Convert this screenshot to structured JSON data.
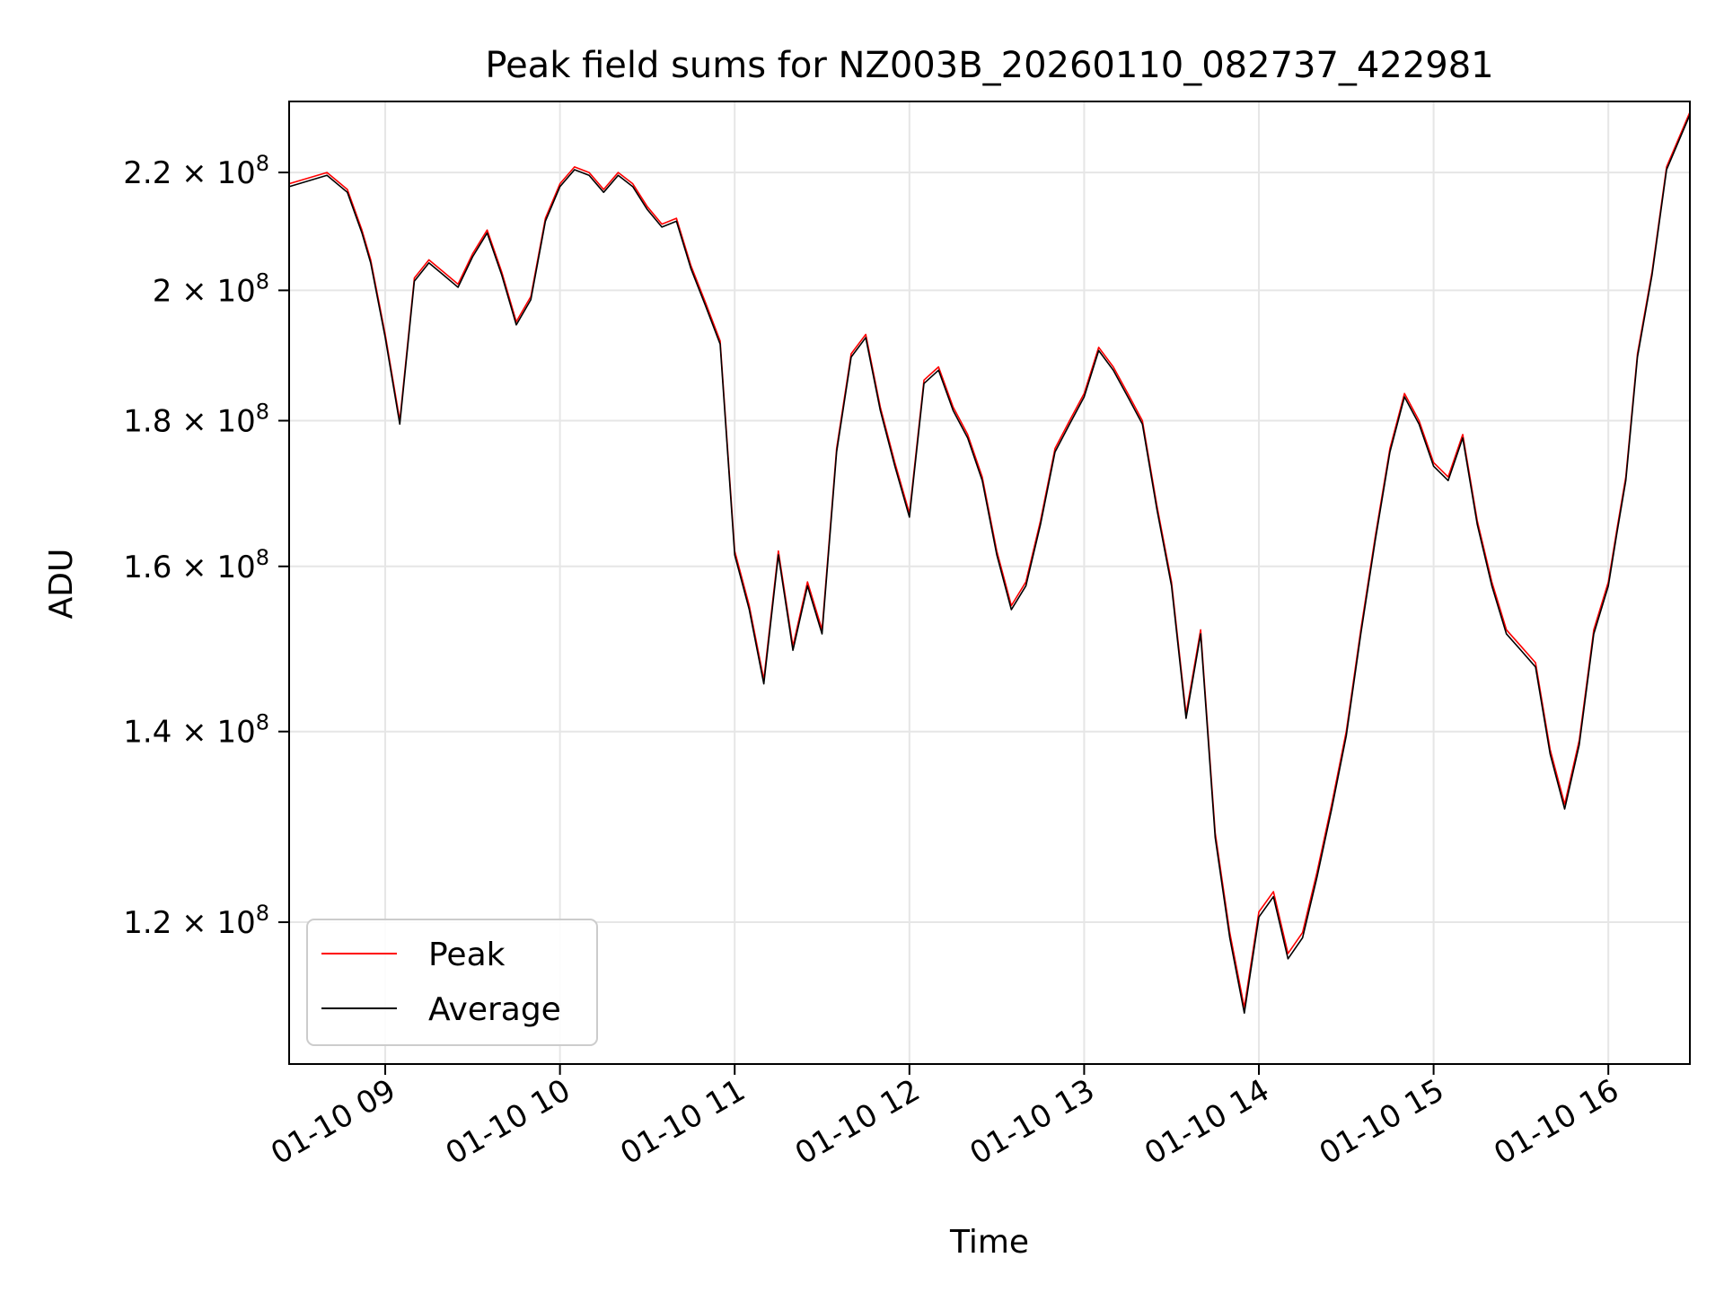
{
  "chart_data": {
    "type": "line",
    "title": "Peak field sums for NZ003B_20260110_082737_422981",
    "xlabel": "Time",
    "ylabel": "ADU",
    "y_scale": "log",
    "xlim": [
      "2026-01-10T08:27",
      "2026-01-10T16:28"
    ],
    "ylim": [
      107000000,
      233000000
    ],
    "grid": true,
    "legend": "lower left",
    "x_ticks": [
      {
        "t": "2026-01-10T09:00",
        "label": "01-10 09"
      },
      {
        "t": "2026-01-10T10:00",
        "label": "01-10 10"
      },
      {
        "t": "2026-01-10T11:00",
        "label": "01-10 11"
      },
      {
        "t": "2026-01-10T12:00",
        "label": "01-10 12"
      },
      {
        "t": "2026-01-10T13:00",
        "label": "01-10 13"
      },
      {
        "t": "2026-01-10T14:00",
        "label": "01-10 14"
      },
      {
        "t": "2026-01-10T15:00",
        "label": "01-10 15"
      },
      {
        "t": "2026-01-10T16:00",
        "label": "01-10 16"
      }
    ],
    "y_ticks": [
      {
        "value": 120000000,
        "mantissa": "1.2",
        "base": "× 10",
        "exp": "8"
      },
      {
        "value": 140000000,
        "mantissa": "1.4",
        "base": "× 10",
        "exp": "8"
      },
      {
        "value": 160000000,
        "mantissa": "1.6",
        "base": "× 10",
        "exp": "8"
      },
      {
        "value": 180000000,
        "mantissa": "1.8",
        "base": "× 10",
        "exp": "8"
      },
      {
        "value": 200000000,
        "mantissa": "2",
        "base": "× 10",
        "exp": "8"
      },
      {
        "value": 220000000,
        "mantissa": "2.2",
        "base": "× 10",
        "exp": "8"
      }
    ],
    "series": [
      {
        "name": "Peak",
        "color": "#ff0000"
      },
      {
        "name": "Average",
        "color": "#000000"
      }
    ],
    "x": [
      "2026-01-10T08:27",
      "2026-01-10T08:40",
      "2026-01-10T08:47",
      "2026-01-10T08:52",
      "2026-01-10T08:55",
      "2026-01-10T09:00",
      "2026-01-10T09:05",
      "2026-01-10T09:10",
      "2026-01-10T09:15",
      "2026-01-10T09:20",
      "2026-01-10T09:25",
      "2026-01-10T09:30",
      "2026-01-10T09:35",
      "2026-01-10T09:40",
      "2026-01-10T09:45",
      "2026-01-10T09:50",
      "2026-01-10T09:55",
      "2026-01-10T10:00",
      "2026-01-10T10:05",
      "2026-01-10T10:10",
      "2026-01-10T10:15",
      "2026-01-10T10:20",
      "2026-01-10T10:25",
      "2026-01-10T10:30",
      "2026-01-10T10:35",
      "2026-01-10T10:40",
      "2026-01-10T10:45",
      "2026-01-10T10:50",
      "2026-01-10T10:55",
      "2026-01-10T11:00",
      "2026-01-10T11:05",
      "2026-01-10T11:10",
      "2026-01-10T11:15",
      "2026-01-10T11:20",
      "2026-01-10T11:25",
      "2026-01-10T11:30",
      "2026-01-10T11:35",
      "2026-01-10T11:40",
      "2026-01-10T11:45",
      "2026-01-10T11:50",
      "2026-01-10T11:55",
      "2026-01-10T12:00",
      "2026-01-10T12:05",
      "2026-01-10T12:10",
      "2026-01-10T12:15",
      "2026-01-10T12:20",
      "2026-01-10T12:25",
      "2026-01-10T12:30",
      "2026-01-10T12:35",
      "2026-01-10T12:40",
      "2026-01-10T12:45",
      "2026-01-10T12:50",
      "2026-01-10T12:55",
      "2026-01-10T13:00",
      "2026-01-10T13:05",
      "2026-01-10T13:10",
      "2026-01-10T13:15",
      "2026-01-10T13:20",
      "2026-01-10T13:25",
      "2026-01-10T13:30",
      "2026-01-10T13:35",
      "2026-01-10T13:40",
      "2026-01-10T13:45",
      "2026-01-10T13:50",
      "2026-01-10T13:55",
      "2026-01-10T14:00",
      "2026-01-10T14:05",
      "2026-01-10T14:10",
      "2026-01-10T14:15",
      "2026-01-10T14:20",
      "2026-01-10T14:25",
      "2026-01-10T14:30",
      "2026-01-10T14:35",
      "2026-01-10T14:40",
      "2026-01-10T14:45",
      "2026-01-10T14:50",
      "2026-01-10T14:55",
      "2026-01-10T15:00",
      "2026-01-10T15:05",
      "2026-01-10T15:10",
      "2026-01-10T15:15",
      "2026-01-10T15:20",
      "2026-01-10T15:25",
      "2026-01-10T15:30",
      "2026-01-10T15:35",
      "2026-01-10T15:40",
      "2026-01-10T15:45",
      "2026-01-10T15:50",
      "2026-01-10T15:55",
      "2026-01-10T16:00",
      "2026-01-10T16:03",
      "2026-01-10T16:06",
      "2026-01-10T16:10",
      "2026-01-10T16:15",
      "2026-01-10T16:20",
      "2026-01-10T16:28"
    ],
    "peak_values": [
      218000000,
      220000000,
      217000000,
      210000000,
      205000000,
      193000000,
      180000000,
      202000000,
      205000000,
      203000000,
      201000000,
      206000000,
      210000000,
      203000000,
      195000000,
      199000000,
      212000000,
      218000000,
      221000000,
      220000000,
      217000000,
      220000000,
      218000000,
      214000000,
      211000000,
      212000000,
      204000000,
      198000000,
      192000000,
      162000000,
      155000000,
      146000000,
      162000000,
      150000000,
      158000000,
      152000000,
      176000000,
      190000000,
      193000000,
      182000000,
      174000000,
      167000000,
      186000000,
      188000000,
      182000000,
      178000000,
      172000000,
      162000000,
      155000000,
      158000000,
      166000000,
      176000000,
      180000000,
      184000000,
      191000000,
      188000000,
      184000000,
      180000000,
      168000000,
      158000000,
      142000000,
      152000000,
      129000000,
      119000000,
      112000000,
      121000000,
      123000000,
      117000000,
      119000000,
      125000000,
      132000000,
      140000000,
      152000000,
      164000000,
      176000000,
      184000000,
      180000000,
      174000000,
      172000000,
      178000000,
      166000000,
      158000000,
      152000000,
      150000000,
      148000000,
      138000000,
      132000000,
      139000000,
      152000000,
      158000000,
      165000000,
      172000000,
      190000000,
      203000000,
      221000000,
      231000000
    ],
    "average_values": [
      217500000,
      219500000,
      216500000,
      209500000,
      204500000,
      192500000,
      179500000,
      201500000,
      204500000,
      202500000,
      200500000,
      205500000,
      209500000,
      202500000,
      194500000,
      198500000,
      211500000,
      217500000,
      220500000,
      219500000,
      216500000,
      219500000,
      217500000,
      213500000,
      210500000,
      211500000,
      203500000,
      197500000,
      191500000,
      161500000,
      154500000,
      145500000,
      161500000,
      149500000,
      157500000,
      151500000,
      175500000,
      189500000,
      192500000,
      181500000,
      173500000,
      166500000,
      185500000,
      187500000,
      181500000,
      177500000,
      171500000,
      161500000,
      154500000,
      157500000,
      165500000,
      175500000,
      179500000,
      183500000,
      190500000,
      187500000,
      183500000,
      179500000,
      167500000,
      157500000,
      141500000,
      151500000,
      128500000,
      118500000,
      111500000,
      120500000,
      122500000,
      116500000,
      118500000,
      124500000,
      131500000,
      139500000,
      151500000,
      163500000,
      175500000,
      183500000,
      179500000,
      173500000,
      171500000,
      177500000,
      165500000,
      157500000,
      151500000,
      149500000,
      147500000,
      137500000,
      131500000,
      138500000,
      151500000,
      157500000,
      164500000,
      171500000,
      189500000,
      202500000,
      220500000,
      230500000
    ]
  }
}
